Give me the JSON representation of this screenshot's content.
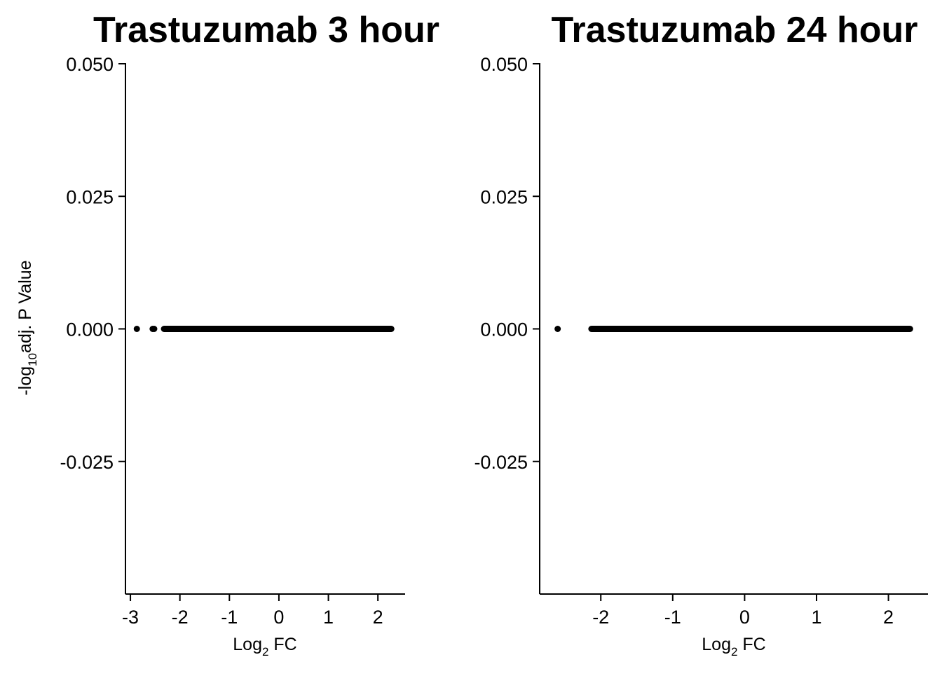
{
  "y_axis_label": {
    "main_prefix": "-log",
    "sub": "10",
    "main_suffix": "adj. P Value"
  },
  "chart_data": [
    {
      "type": "scatter",
      "title": "Trastuzumab 3 hour",
      "xlabel": {
        "main": "Log",
        "sub": "2",
        "suffix": " FC"
      },
      "xlim": [
        -3.1,
        2.55
      ],
      "ylim": [
        -0.05,
        0.05
      ],
      "xticks": [
        -3,
        -2,
        -1,
        0,
        1,
        2
      ],
      "xtick_labels": [
        "-3",
        "-2",
        "-1",
        "0",
        "1",
        "2"
      ],
      "yticks": [
        0.05,
        0.025,
        0.0,
        -0.025
      ],
      "ytick_labels": [
        "0.050",
        "0.025",
        "0.000",
        "-0.025"
      ],
      "grid": false,
      "points": [
        {
          "x": -2.87,
          "y": 0
        },
        {
          "x": -2.55,
          "y": 0
        },
        {
          "x": -2.52,
          "y": 0
        }
      ],
      "dense_range": {
        "x_from": -2.32,
        "x_to": 2.27,
        "y": 0
      }
    },
    {
      "type": "scatter",
      "title": "Trastuzumab 24 hour",
      "xlabel": {
        "main": "Log",
        "sub": "2",
        "suffix": " FC"
      },
      "xlim": [
        -2.85,
        2.55
      ],
      "ylim": [
        -0.05,
        0.05
      ],
      "xticks": [
        -2,
        -1,
        0,
        1,
        2
      ],
      "xtick_labels": [
        "-2",
        "-1",
        "0",
        "1",
        "2"
      ],
      "yticks": [
        0.05,
        0.025,
        0.0,
        -0.025
      ],
      "ytick_labels": [
        "0.050",
        "0.025",
        "0.000",
        "-0.025"
      ],
      "grid": false,
      "points": [
        {
          "x": -2.6,
          "y": 0
        }
      ],
      "dense_range": {
        "x_from": -2.13,
        "x_to": 2.3,
        "y": 0
      }
    }
  ]
}
